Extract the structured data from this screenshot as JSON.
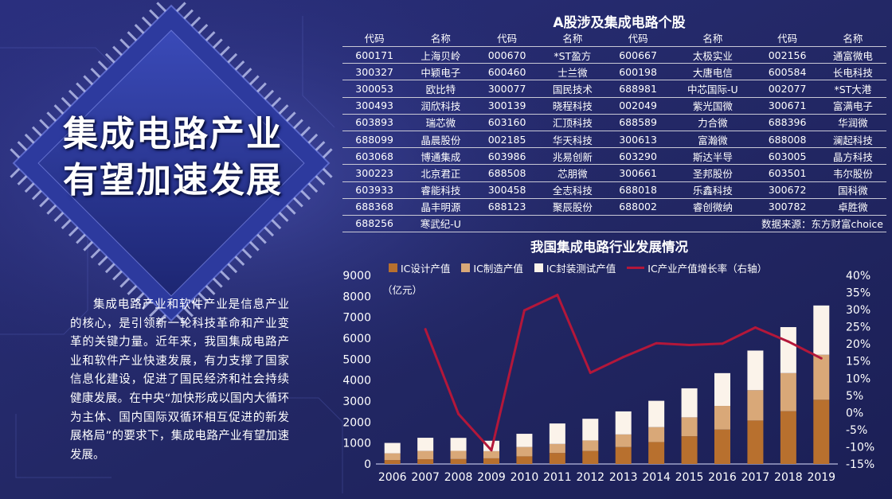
{
  "headline": {
    "line1": "集成电路产业",
    "line2": "有望加速发展"
  },
  "body_text": "集成电路产业和软件产业是信息产业的核心，是引领新一轮科技革命和产业变革的关键力量。近年来，我国集成电路产业和软件产业快速发展，有力支撑了国家信息化建设，促进了国民经济和社会持续健康发展。在中央“加快形成以国内大循环为主体、国内国际双循环相互促进的新发展格局”的要求下，集成电路产业有望加速发展。",
  "table": {
    "title": "A股涉及集成电路个股",
    "headers": [
      "代码",
      "名称",
      "代码",
      "名称",
      "代码",
      "名称",
      "代码",
      "名称"
    ],
    "rows": [
      [
        "600171",
        "上海贝岭",
        "000670",
        "*ST盈方",
        "600667",
        "太极实业",
        "002156",
        "通富微电"
      ],
      [
        "300327",
        "中颖电子",
        "600460",
        "士兰微",
        "600198",
        "大唐电信",
        "600584",
        "长电科技"
      ],
      [
        "300053",
        "欧比特",
        "300077",
        "国民技术",
        "688981",
        "中芯国际-U",
        "002077",
        "*ST大港"
      ],
      [
        "300493",
        "润欣科技",
        "300139",
        "晓程科技",
        "002049",
        "紫光国微",
        "300671",
        "富满电子"
      ],
      [
        "603893",
        "瑞芯微",
        "603160",
        "汇顶科技",
        "688589",
        "力合微",
        "688396",
        "华润微"
      ],
      [
        "688099",
        "晶晨股份",
        "002185",
        "华天科技",
        "300613",
        "富瀚微",
        "688008",
        "澜起科技"
      ],
      [
        "603068",
        "博通集成",
        "603986",
        "兆易创新",
        "603290",
        "斯达半导",
        "603005",
        "晶方科技"
      ],
      [
        "300223",
        "北京君正",
        "688508",
        "芯朋微",
        "300661",
        "圣邦股份",
        "603501",
        "韦尔股份"
      ],
      [
        "603933",
        "睿能科技",
        "300458",
        "全志科技",
        "688018",
        "乐鑫科技",
        "300672",
        "国科微"
      ],
      [
        "688368",
        "晶丰明源",
        "688123",
        "聚辰股份",
        "688002",
        "睿创微纳",
        "300782",
        "卓胜微"
      ]
    ],
    "last_row": {
      "code": "688256",
      "name": "寒武纪-U",
      "source": "数据来源：东方财富choice"
    }
  },
  "chart_data": {
    "type": "bar",
    "title": "我国集成电路行业发展情况",
    "ylabel": "（亿元）",
    "categories": [
      "2006",
      "2007",
      "2008",
      "2009",
      "2010",
      "2011",
      "2012",
      "2013",
      "2014",
      "2015",
      "2016",
      "2017",
      "2018",
      "2019"
    ],
    "series": [
      {
        "name": "IC设计产值",
        "type": "stacked_bar",
        "color": "#b8702e",
        "values": [
          186,
          225,
          235,
          270,
          364,
          526,
          622,
          809,
          1047,
          1325,
          1644,
          2074,
          2519,
          3064
        ]
      },
      {
        "name": "IC制造产值",
        "type": "stacked_bar",
        "color": "#d9a878",
        "values": [
          323,
          398,
          392,
          341,
          448,
          431,
          501,
          601,
          712,
          901,
          1127,
          1448,
          1818,
          2149
        ]
      },
      {
        "name": "IC封装测试产值",
        "type": "stacked_bar",
        "color": "#fbf3ea",
        "values": [
          496,
          628,
          619,
          498,
          629,
          976,
          1035,
          1099,
          1256,
          1384,
          1564,
          1890,
          2194,
          2350
        ]
      },
      {
        "name": "IC产业产值增长率（右轴）",
        "type": "line",
        "color": "#b3173a",
        "axis": "right",
        "values": [
          null,
          24.3,
          -0.4,
          -11.0,
          29.8,
          34.3,
          11.6,
          16.2,
          20.2,
          19.7,
          20.1,
          24.8,
          20.7,
          15.8
        ]
      }
    ],
    "ylim": [
      0,
      9000
    ],
    "yticks": [
      "0",
      "1000",
      "2000",
      "3000",
      "4000",
      "5000",
      "6000",
      "7000",
      "8000",
      "9000"
    ],
    "y2lim": [
      -15,
      40
    ],
    "y2ticks": [
      "-15%",
      "-10%",
      "-5%",
      "0%",
      "5%",
      "10%",
      "15%",
      "20%",
      "25%",
      "30%",
      "35%",
      "40%"
    ],
    "legend": "top"
  }
}
